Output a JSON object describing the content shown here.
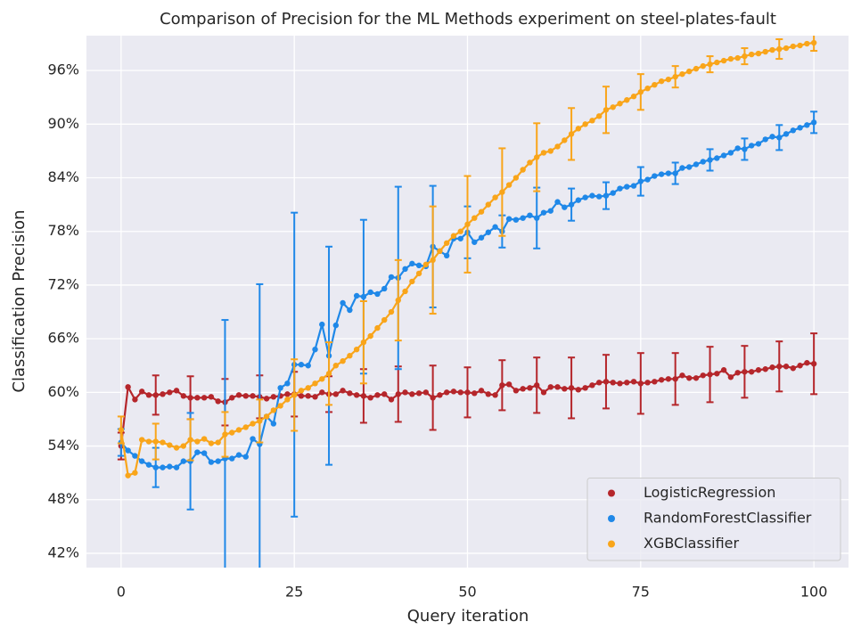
{
  "chart_data": {
    "type": "line",
    "title": "Comparison of Precision for the ML Methods experiment on steel-plates-fault",
    "x_label": "Query iteration",
    "y_label": "Classification Precision",
    "x": [
      0,
      1,
      2,
      3,
      4,
      5,
      6,
      7,
      8,
      9,
      10,
      11,
      12,
      13,
      14,
      15,
      16,
      17,
      18,
      19,
      20,
      21,
      22,
      23,
      24,
      25,
      26,
      27,
      28,
      29,
      30,
      31,
      32,
      33,
      34,
      35,
      36,
      37,
      38,
      39,
      40,
      41,
      42,
      43,
      44,
      45,
      46,
      47,
      48,
      49,
      50,
      51,
      52,
      53,
      54,
      55,
      56,
      57,
      58,
      59,
      60,
      61,
      62,
      63,
      64,
      65,
      66,
      67,
      68,
      69,
      70,
      71,
      72,
      73,
      74,
      75,
      76,
      77,
      78,
      79,
      80,
      81,
      82,
      83,
      84,
      85,
      86,
      87,
      88,
      89,
      90,
      91,
      92,
      93,
      94,
      95,
      96,
      97,
      98,
      99,
      100
    ],
    "series": [
      {
        "name": "LogisticRegression",
        "color": "#b5262b",
        "values": [
          54,
          60.6,
          59.2,
          60.1,
          59.7,
          59.7,
          59.8,
          60,
          60.2,
          59.6,
          59.4,
          59.4,
          59.4,
          59.5,
          59,
          58.9,
          59.4,
          59.7,
          59.6,
          59.6,
          59.5,
          59.3,
          59.5,
          59.6,
          59.8,
          59.8,
          59.6,
          59.6,
          59.5,
          60,
          59.8,
          59.8,
          60.2,
          59.9,
          59.7,
          59.6,
          59.4,
          59.7,
          59.8,
          59.2,
          59.8,
          60,
          59.8,
          59.9,
          60,
          59.4,
          59.7,
          60,
          60.1,
          60,
          60,
          59.9,
          60.2,
          59.8,
          59.7,
          60.8,
          60.9,
          60.2,
          60.4,
          60.5,
          60.8,
          60,
          60.6,
          60.6,
          60.4,
          60.5,
          60.3,
          60.5,
          60.8,
          61.1,
          61.2,
          61.1,
          61,
          61.1,
          61.2,
          61,
          61.1,
          61.2,
          61.4,
          61.5,
          61.5,
          61.9,
          61.6,
          61.6,
          61.9,
          62,
          62.1,
          62.5,
          61.7,
          62.2,
          62.3,
          62.3,
          62.5,
          62.6,
          62.8,
          62.9,
          62.9,
          62.7,
          63,
          63.3,
          63.2
        ],
        "errors": [
          1.5,
          null,
          null,
          null,
          null,
          2.2,
          null,
          null,
          null,
          null,
          2.4,
          null,
          null,
          null,
          null,
          2.6,
          null,
          null,
          null,
          null,
          2.4,
          null,
          null,
          null,
          null,
          2.5,
          null,
          null,
          null,
          null,
          2,
          null,
          null,
          null,
          null,
          3,
          null,
          null,
          null,
          null,
          3.1,
          null,
          null,
          null,
          null,
          3.6,
          null,
          null,
          null,
          null,
          2.8,
          null,
          null,
          null,
          null,
          2.8,
          null,
          null,
          null,
          null,
          3.1,
          null,
          null,
          null,
          null,
          3.4,
          null,
          null,
          null,
          null,
          3,
          null,
          null,
          null,
          null,
          3.4,
          null,
          null,
          null,
          null,
          2.9,
          null,
          null,
          null,
          null,
          3.1,
          null,
          null,
          null,
          null,
          2.9,
          null,
          null,
          null,
          null,
          2.8,
          null,
          null,
          null,
          null,
          3.4
        ]
      },
      {
        "name": "RandomForestClassifier",
        "color": "#1f88e8",
        "values": [
          54.4,
          53.5,
          52.9,
          52.3,
          51.9,
          51.6,
          51.6,
          51.7,
          51.6,
          52.3,
          52.3,
          53.3,
          53.2,
          52.2,
          52.3,
          52.6,
          52.6,
          53,
          52.8,
          54.8,
          54.2,
          57.3,
          56.5,
          60.5,
          61,
          63.1,
          63.1,
          63,
          64.8,
          67.6,
          64.1,
          67.5,
          70,
          69.2,
          70.8,
          70.7,
          71.2,
          71,
          71.6,
          72.9,
          72.8,
          73.8,
          74.4,
          74.2,
          74.1,
          76.3,
          75.8,
          75.3,
          77.2,
          77.2,
          77.9,
          76.8,
          77.3,
          77.9,
          78.5,
          78,
          79.4,
          79.3,
          79.5,
          79.8,
          79.5,
          80.1,
          80.3,
          81.3,
          80.7,
          81,
          81.5,
          81.8,
          82,
          81.9,
          82,
          82.3,
          82.8,
          83,
          83.1,
          83.6,
          83.8,
          84.2,
          84.4,
          84.5,
          84.5,
          85.1,
          85.2,
          85.5,
          85.8,
          86,
          86.2,
          86.5,
          86.8,
          87.3,
          87.2,
          87.6,
          87.8,
          88.3,
          88.6,
          88.5,
          88.9,
          89.3,
          89.6,
          89.9,
          90.2
        ],
        "errors": [
          1.5,
          null,
          null,
          null,
          null,
          2.2,
          null,
          null,
          null,
          null,
          5.4,
          null,
          null,
          null,
          null,
          15.5,
          null,
          null,
          null,
          null,
          17.9,
          null,
          null,
          null,
          null,
          17,
          null,
          null,
          null,
          null,
          12.2,
          null,
          null,
          null,
          null,
          8.6,
          null,
          null,
          null,
          null,
          10.2,
          null,
          null,
          null,
          null,
          6.8,
          null,
          null,
          null,
          null,
          2.9,
          null,
          null,
          null,
          null,
          1.8,
          null,
          null,
          null,
          null,
          3.4,
          null,
          null,
          null,
          null,
          1.8,
          null,
          null,
          null,
          null,
          1.5,
          null,
          null,
          null,
          null,
          1.6,
          null,
          null,
          null,
          null,
          1.2,
          null,
          null,
          null,
          null,
          1.2,
          null,
          null,
          null,
          null,
          1.2,
          null,
          null,
          null,
          null,
          1.4,
          null,
          null,
          null,
          null,
          1.2
        ]
      },
      {
        "name": "XGBClassifier",
        "color": "#f9a51a",
        "values": [
          55.8,
          50.7,
          51,
          54.7,
          54.5,
          54.5,
          54.4,
          54.1,
          53.8,
          54,
          54.7,
          54.5,
          54.8,
          54.3,
          54.4,
          55.3,
          55.5,
          55.8,
          56.1,
          56.5,
          56.8,
          57.3,
          58,
          58.5,
          59.2,
          59.7,
          60.2,
          60.5,
          61,
          61.5,
          62.1,
          63,
          63.5,
          64.1,
          64.8,
          65.6,
          66.3,
          67.2,
          68.1,
          69,
          70.3,
          71.3,
          72.4,
          73.3,
          74.3,
          74.8,
          75.8,
          76.7,
          77.5,
          78,
          78.8,
          79.5,
          80.2,
          81,
          81.8,
          82.4,
          83.2,
          84,
          84.9,
          85.7,
          86.3,
          86.8,
          87,
          87.5,
          88.2,
          88.9,
          89.5,
          90,
          90.4,
          90.9,
          91.6,
          91.9,
          92.3,
          92.7,
          93.1,
          93.6,
          94,
          94.4,
          94.8,
          95,
          95.3,
          95.6,
          95.9,
          96.2,
          96.5,
          96.7,
          96.9,
          97.1,
          97.3,
          97.4,
          97.6,
          97.8,
          97.9,
          98.1,
          98.3,
          98.4,
          98.5,
          98.7,
          98.8,
          99,
          99.1
        ],
        "errors": [
          1.5,
          null,
          null,
          null,
          null,
          2,
          null,
          null,
          null,
          null,
          2.3,
          null,
          null,
          null,
          null,
          2.5,
          null,
          null,
          null,
          null,
          2.4,
          null,
          null,
          null,
          null,
          4,
          null,
          null,
          null,
          null,
          3.5,
          null,
          null,
          null,
          null,
          4.6,
          null,
          null,
          null,
          null,
          4.5,
          null,
          null,
          null,
          null,
          6,
          null,
          null,
          null,
          null,
          5.4,
          null,
          null,
          null,
          null,
          4.9,
          null,
          null,
          null,
          null,
          3.8,
          null,
          null,
          null,
          null,
          2.9,
          null,
          null,
          null,
          null,
          2.6,
          null,
          null,
          null,
          null,
          2,
          null,
          null,
          null,
          null,
          1.2,
          null,
          null,
          null,
          null,
          0.9,
          null,
          null,
          null,
          null,
          0.9,
          null,
          null,
          null,
          null,
          1.1,
          null,
          null,
          null,
          null,
          0.9
        ]
      }
    ],
    "xlim": [
      -5,
      105
    ],
    "xticks": [
      0,
      25,
      50,
      75,
      100
    ],
    "ylim": [
      40.4,
      99.9
    ],
    "yticks": [
      {
        "value": 42,
        "label": "42%"
      },
      {
        "value": 48,
        "label": "48%"
      },
      {
        "value": 54,
        "label": "54%"
      },
      {
        "value": 60,
        "label": "60%"
      },
      {
        "value": 66,
        "label": "66%"
      },
      {
        "value": 72,
        "label": "72%"
      },
      {
        "value": 78,
        "label": "78%"
      },
      {
        "value": 84,
        "label": "84%"
      },
      {
        "value": 90,
        "label": "90%"
      },
      {
        "value": 96,
        "label": "96%"
      }
    ],
    "grid": true,
    "legend": "lower right"
  }
}
